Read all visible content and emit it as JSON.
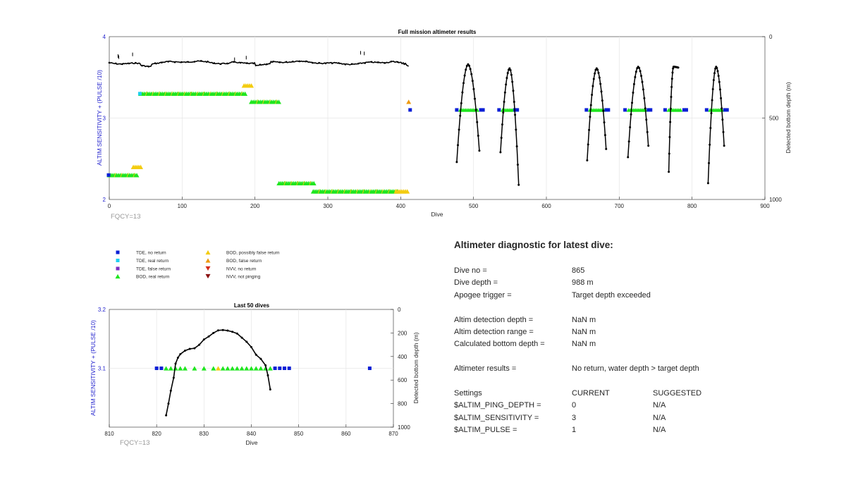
{
  "chart_data": [
    {
      "type": "scatter",
      "title": "Full mission altimeter results",
      "xlabel": "Dive",
      "ylabel": "ALTIM SENSITIVITY + (PULSE /10)",
      "ylabel_right": "Detected bottom depth (m)",
      "xlim": [
        0,
        900
      ],
      "ylim": [
        2,
        4
      ],
      "ylim_right": [
        0,
        1000
      ],
      "y_right_reversed": true,
      "xticks": [
        "0",
        "100",
        "200",
        "300",
        "400",
        "500",
        "600",
        "700",
        "800",
        "900"
      ],
      "yticks": [
        "2",
        "3",
        "4"
      ],
      "yticks_right": [
        "0",
        "500",
        "1000"
      ],
      "grid": true,
      "annotation": "FQCY=13",
      "segments": [
        {
          "x": [
            43,
            187
          ],
          "y": 3.3,
          "marker": "BOD, real return",
          "lead": "TDE, real return"
        },
        {
          "x": [
            0,
            38
          ],
          "y": 2.3,
          "marker": "BOD, real return",
          "lead": "TDE, no return"
        },
        {
          "x": [
            195,
            235
          ],
          "y": 3.2,
          "marker": "BOD, real return"
        },
        {
          "x": [
            233,
            283
          ],
          "y": 2.2,
          "marker": "BOD, real return"
        },
        {
          "x": [
            280,
            398
          ],
          "y": 2.1,
          "marker": "BOD, real return"
        },
        {
          "x": [
            394,
            410
          ],
          "y": 2.1,
          "marker": "BOD, possibly false return"
        },
        {
          "x": [
            185,
            197
          ],
          "y": 3.4,
          "marker": "BOD, possibly false return"
        },
        {
          "x": [
            33,
            45
          ],
          "y": 2.4,
          "marker": "BOD, possibly false return"
        }
      ],
      "points": [
        {
          "x": 411,
          "y": 3.2,
          "marker": "BOD, false return"
        },
        {
          "x": 413,
          "y": 3.1,
          "marker": "TDE, no return"
        }
      ],
      "clusters": [
        {
          "x0": 477,
          "x1": 513,
          "y": 3.1
        },
        {
          "x0": 535,
          "x1": 560,
          "y": 3.1
        },
        {
          "x0": 655,
          "x1": 685,
          "y": 3.1
        },
        {
          "x0": 708,
          "x1": 743,
          "y": 3.1
        },
        {
          "x0": 763,
          "x1": 792,
          "y": 3.1
        },
        {
          "x0": 820,
          "x1": 848,
          "y": 3.1
        }
      ],
      "depth_series": {
        "name": "Detected bottom depth",
        "flat_segment": {
          "x0": 0,
          "x1": 412,
          "depth_mean": 160
        },
        "arches": [
          {
            "x0": 477,
            "x1": 508,
            "top": 170,
            "bottom0": 770,
            "bottom1": 700
          },
          {
            "x0": 537,
            "x1": 562,
            "top": 195,
            "bottom0": 710,
            "bottom1": 910
          },
          {
            "x0": 656,
            "x1": 682,
            "top": 195,
            "bottom0": 760,
            "bottom1": 690
          },
          {
            "x0": 712,
            "x1": 740,
            "top": 185,
            "bottom0": 740,
            "bottom1": 670
          },
          {
            "x0": 768,
            "x1": 781,
            "top": 185,
            "bottom0": 830,
            "bottom1": 190
          },
          {
            "x0": 822,
            "x1": 844,
            "top": 185,
            "bottom0": 900,
            "bottom1": 670
          }
        ]
      }
    },
    {
      "type": "scatter",
      "title": "Last 50 dives",
      "xlabel": "Dive",
      "ylabel": "ALTIM SENSITIVITY + (PULSE /10)",
      "ylabel_right": "Detected bottom depth (m)",
      "xlim": [
        810,
        870
      ],
      "ylim": [
        3.0,
        3.2
      ],
      "ylim_right": [
        0,
        1000
      ],
      "y_right_reversed": true,
      "xticks": [
        "810",
        "820",
        "830",
        "840",
        "850",
        "860",
        "870"
      ],
      "yticks": [
        "3.1",
        "3.2"
      ],
      "yticks_right": [
        "0",
        "200",
        "400",
        "600",
        "800",
        "1000"
      ],
      "grid": true,
      "annotation": "FQCY=13",
      "markers": [
        {
          "x": 820,
          "marker": "TDE, no return"
        },
        {
          "x": 821,
          "marker": "TDE, no return"
        },
        {
          "x": 822,
          "marker": "BOD, real return"
        },
        {
          "x": 823,
          "marker": "BOD, real return"
        },
        {
          "x": 824,
          "marker": "BOD, real return"
        },
        {
          "x": 825,
          "marker": "BOD, real return"
        },
        {
          "x": 826,
          "marker": "BOD, real return"
        },
        {
          "x": 828,
          "marker": "BOD, real return"
        },
        {
          "x": 830,
          "marker": "BOD, real return"
        },
        {
          "x": 832,
          "marker": "BOD, real return"
        },
        {
          "x": 833,
          "marker": "BOD, possibly false return"
        },
        {
          "x": 834,
          "marker": "BOD, real return"
        },
        {
          "x": 835,
          "marker": "BOD, real return"
        },
        {
          "x": 836,
          "marker": "BOD, real return"
        },
        {
          "x": 837,
          "marker": "BOD, real return"
        },
        {
          "x": 838,
          "marker": "BOD, real return"
        },
        {
          "x": 839,
          "marker": "BOD, real return"
        },
        {
          "x": 840,
          "marker": "BOD, real return"
        },
        {
          "x": 841,
          "marker": "BOD, real return"
        },
        {
          "x": 842,
          "marker": "BOD, real return"
        },
        {
          "x": 843,
          "marker": "BOD, real return"
        },
        {
          "x": 844,
          "marker": "BOD, real return"
        },
        {
          "x": 845,
          "marker": "TDE, no return"
        },
        {
          "x": 846,
          "marker": "TDE, no return"
        },
        {
          "x": 847,
          "marker": "TDE, no return"
        },
        {
          "x": 848,
          "marker": "TDE, no return"
        },
        {
          "x": 865,
          "marker": "TDE, no return"
        }
      ],
      "depth_series": {
        "name": "Detected bottom depth",
        "x": [
          822,
          822.5,
          823,
          823.6,
          824,
          824.5,
          825,
          826,
          827,
          828,
          829,
          830,
          831,
          832,
          833,
          834,
          835,
          836,
          837,
          838,
          839,
          840,
          841,
          842,
          843,
          843.5,
          844
        ],
        "y": [
          900,
          800,
          690,
          580,
          460,
          410,
          380,
          350,
          335,
          330,
          300,
          255,
          230,
          200,
          178,
          175,
          180,
          190,
          205,
          240,
          275,
          320,
          385,
          420,
          475,
          560,
          680
        ]
      }
    }
  ],
  "legend": {
    "items": [
      {
        "label": "TDE, no return",
        "shape": "square",
        "color": "#0a1fd6"
      },
      {
        "label": "TDE, real return",
        "shape": "square",
        "color": "#1ecff2"
      },
      {
        "label": "TDE, false return",
        "shape": "square",
        "color": "#7b2ec2"
      },
      {
        "label": "BOD, real return",
        "shape": "triangle-up",
        "color": "#1fe61f"
      },
      {
        "label": "BOD, possibly false return",
        "shape": "triangle-up",
        "color": "#f3cc10"
      },
      {
        "label": "BOD, false return",
        "shape": "triangle-up",
        "color": "#ee9a10"
      },
      {
        "label": "NVV, no return",
        "shape": "triangle-down",
        "color": "#d42a1a"
      },
      {
        "label": "NVV, not pinging",
        "shape": "triangle-down",
        "color": "#8a1010"
      }
    ]
  },
  "colors": {
    "axis_label": "#1f1fcc",
    "depth_line": "#000000",
    "fqcy": "#999999",
    "grid": "#e6e6e6"
  },
  "diagnostic": {
    "title": "Altimeter diagnostic for latest dive:",
    "dive_no_label": "Dive no =",
    "dive_no": "865",
    "dive_depth_label": "Dive depth =",
    "dive_depth": "988 m",
    "apogee_label": "Apogee trigger =",
    "apogee": "Target depth exceeded",
    "det_depth_label": "Altim detection depth =",
    "det_depth": "NaN m",
    "det_range_label": "Altim detection range =",
    "det_range": "NaN m",
    "calc_depth_label": "Calculated bottom depth =",
    "calc_depth": "NaN m",
    "results_label": "Altimeter results =",
    "results": "No return, water depth > target depth",
    "settings_label": "Settings",
    "current_label": "CURRENT",
    "suggested_label": "SUGGESTED",
    "ping_depth_label": "$ALTIM_PING_DEPTH =",
    "ping_depth_current": "0",
    "ping_depth_suggested": "N/A",
    "sensitivity_label": "$ALTIM_SENSITIVITY =",
    "sensitivity_current": "3",
    "sensitivity_suggested": "N/A",
    "pulse_label": "$ALTIM_PULSE =",
    "pulse_current": "1",
    "pulse_suggested": "N/A"
  }
}
